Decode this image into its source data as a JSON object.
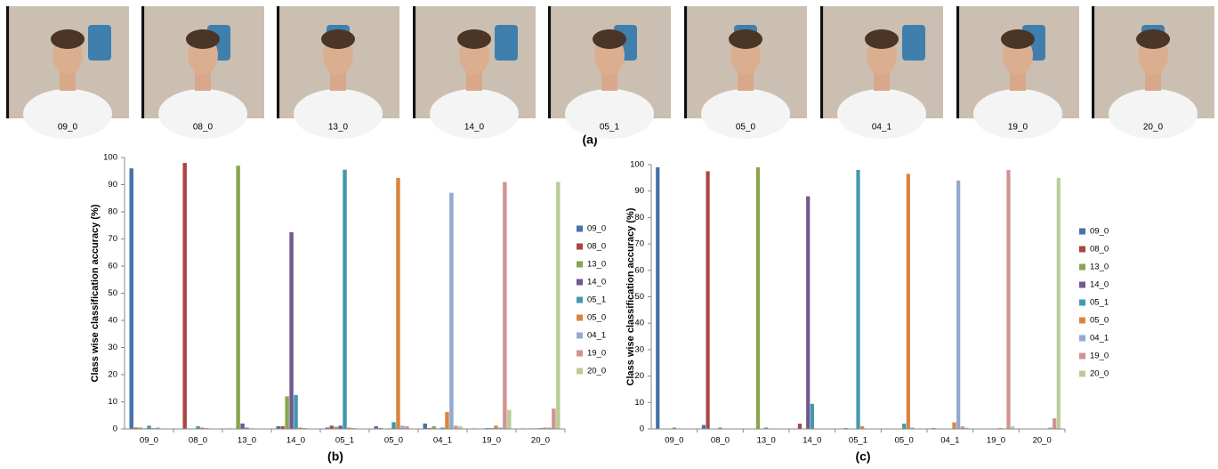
{
  "photos": [
    "09_0",
    "08_0",
    "13_0",
    "14_0",
    "05_1",
    "05_0",
    "04_1",
    "19_0",
    "20_0"
  ],
  "photos_caption": "(a)",
  "chart_data": [
    {
      "type": "bar",
      "caption": "(b)",
      "y_label": "Class wise classification accuracy (%)",
      "categories": [
        "09_0",
        "08_0",
        "13_0",
        "14_0",
        "05_1",
        "05_0",
        "04_1",
        "19_0",
        "20_0"
      ],
      "ylim": [
        0,
        100
      ],
      "yticks": [
        0,
        10,
        20,
        30,
        40,
        50,
        60,
        70,
        80,
        90,
        100
      ],
      "grid": false,
      "legend": "right",
      "series": [
        {
          "name": "09_0",
          "color": "#4572A7",
          "values": [
            96,
            0,
            0.2,
            1,
            0.5,
            1,
            2,
            0.2,
            0.2
          ]
        },
        {
          "name": "08_0",
          "color": "#AA4643",
          "values": [
            0.5,
            98,
            0,
            1,
            1.2,
            0.3,
            0.3,
            0,
            0
          ]
        },
        {
          "name": "13_0",
          "color": "#89A54E",
          "values": [
            0.5,
            0.2,
            97,
            12,
            0.8,
            0,
            1,
            0,
            0.2
          ]
        },
        {
          "name": "14_0",
          "color": "#71588F",
          "values": [
            0.2,
            0,
            2,
            72.5,
            1.2,
            0.2,
            0.2,
            0.3,
            0.2
          ]
        },
        {
          "name": "05_1",
          "color": "#4198AF",
          "values": [
            1.2,
            1,
            0.5,
            12.5,
            95.5,
            2.5,
            0.5,
            0.3,
            0.3
          ]
        },
        {
          "name": "05_0",
          "color": "#DB843D",
          "values": [
            0.3,
            0.5,
            0.2,
            0.5,
            0.5,
            92.5,
            6.2,
            1.2,
            0.5
          ]
        },
        {
          "name": "04_1",
          "color": "#93A9CF",
          "values": [
            0.5,
            0.3,
            0,
            0.3,
            0.3,
            1.2,
            87,
            0.5,
            0.5
          ]
        },
        {
          "name": "19_0",
          "color": "#D19392",
          "values": [
            0,
            0,
            0,
            0,
            0,
            1,
            1.2,
            91,
            7.5
          ]
        },
        {
          "name": "20_0",
          "color": "#B9CD96",
          "values": [
            0,
            0,
            0,
            0,
            0,
            0,
            1,
            7,
            91
          ]
        }
      ]
    },
    {
      "type": "bar",
      "caption": "(c)",
      "y_label": "Class wise classification accuracy (%)",
      "categories": [
        "09_0",
        "08_0",
        "13_0",
        "14_0",
        "05_1",
        "05_0",
        "04_1",
        "19_0",
        "20_0"
      ],
      "ylim": [
        0,
        100
      ],
      "yticks": [
        0,
        10,
        20,
        30,
        40,
        50,
        60,
        70,
        80,
        90,
        100
      ],
      "grid": false,
      "legend": "right",
      "series": [
        {
          "name": "09_0",
          "color": "#4572A7",
          "values": [
            99,
            1.5,
            0,
            0,
            0,
            0,
            0.3,
            0,
            0
          ]
        },
        {
          "name": "08_0",
          "color": "#AA4643",
          "values": [
            0,
            97.5,
            0,
            2,
            0.3,
            0,
            0,
            0,
            0
          ]
        },
        {
          "name": "13_0",
          "color": "#89A54E",
          "values": [
            0,
            0,
            99,
            0,
            0,
            0,
            0,
            0,
            0
          ]
        },
        {
          "name": "14_0",
          "color": "#71588F",
          "values": [
            0,
            0,
            0,
            88,
            0,
            0,
            0,
            0,
            0
          ]
        },
        {
          "name": "05_1",
          "color": "#4198AF",
          "values": [
            0.5,
            0.5,
            0.5,
            9.5,
            98,
            2,
            0,
            0,
            0
          ]
        },
        {
          "name": "05_0",
          "color": "#DB843D",
          "values": [
            0,
            0,
            0,
            0,
            1,
            96.5,
            2.5,
            0.3,
            0
          ]
        },
        {
          "name": "04_1",
          "color": "#93A9CF",
          "values": [
            0,
            0,
            0,
            0,
            0,
            0.5,
            94,
            0,
            0.5
          ]
        },
        {
          "name": "19_0",
          "color": "#D19392",
          "values": [
            0,
            0,
            0,
            0,
            0,
            0,
            1,
            98,
            4
          ]
        },
        {
          "name": "20_0",
          "color": "#B9CD96",
          "values": [
            0,
            0,
            0,
            0,
            0,
            0,
            0.5,
            1,
            95
          ]
        }
      ]
    }
  ]
}
